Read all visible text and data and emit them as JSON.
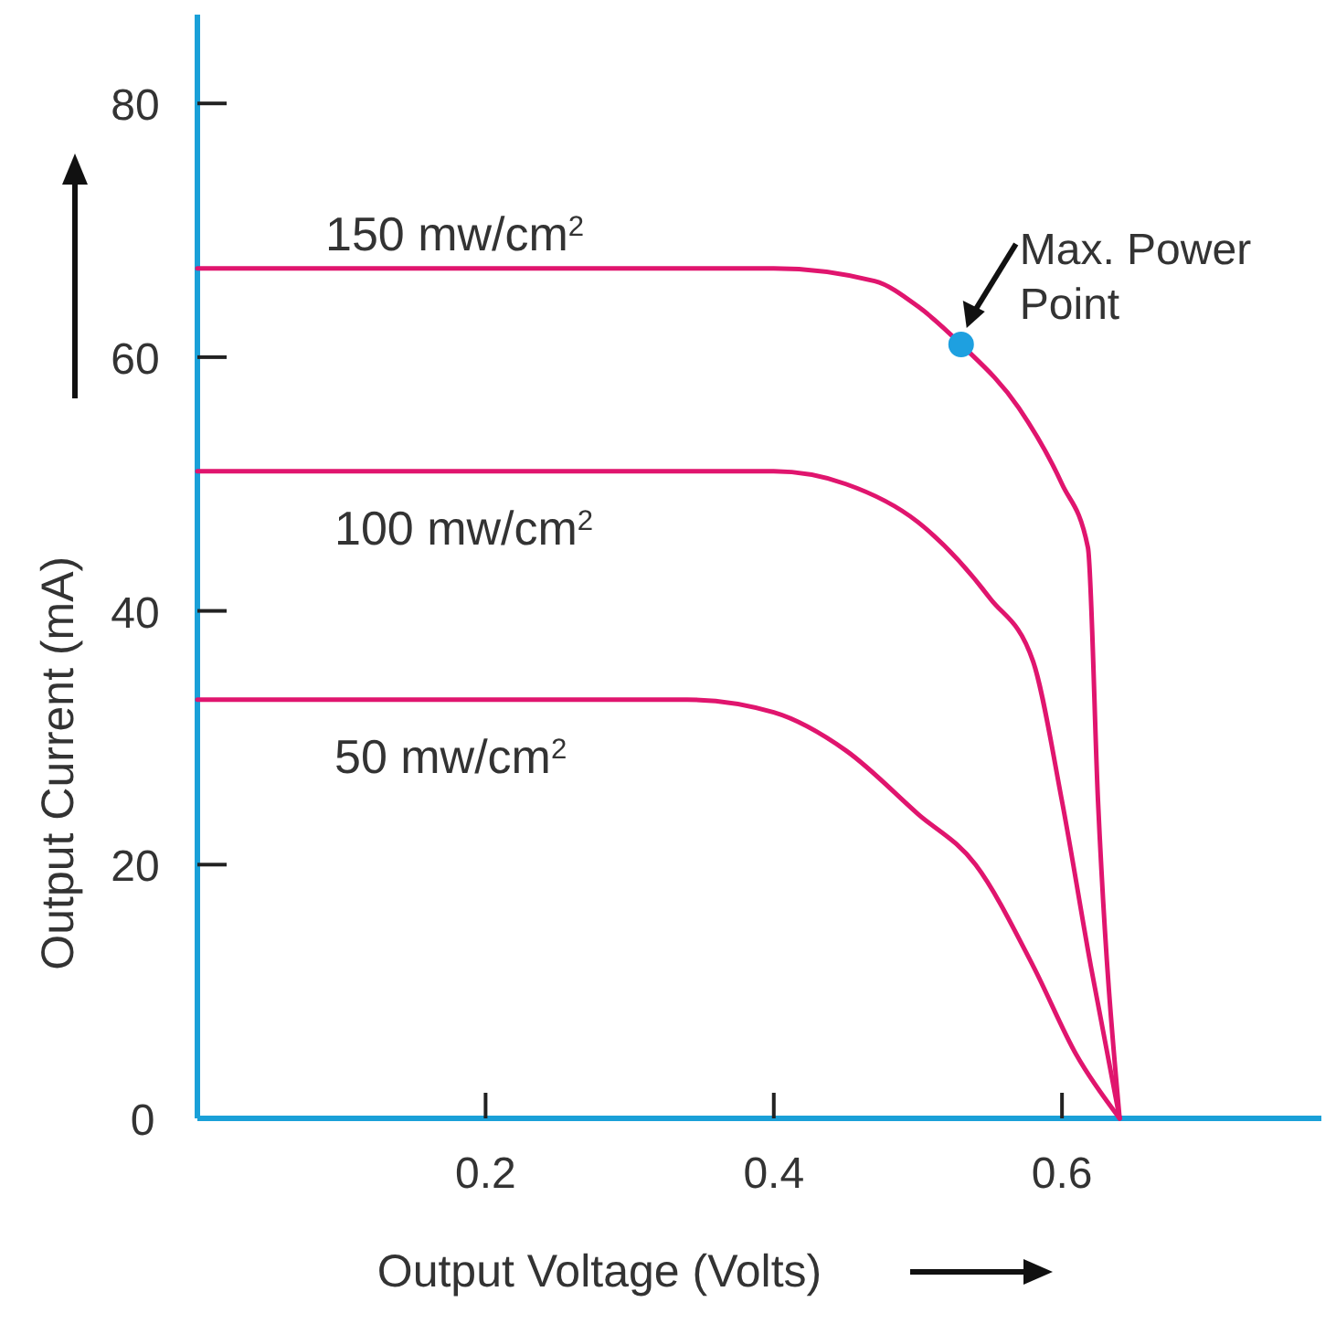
{
  "chart_data": {
    "type": "line",
    "xlabel": "Output Voltage (Volts)",
    "ylabel": "Output Current (mA)",
    "xlim": [
      0,
      0.78
    ],
    "ylim": [
      0,
      87
    ],
    "xticks": [
      0.2,
      0.4,
      0.6
    ],
    "yticks": [
      0,
      20,
      40,
      60,
      80
    ],
    "grid": false,
    "marker": "none",
    "line_style": "solid",
    "series": [
      {
        "name": "150 mw/cm$^{2}$",
        "color": "#e0156e",
        "x": [
          0,
          0.4,
          0.47,
          0.5,
          0.53,
          0.57,
          0.6,
          0.618,
          0.625,
          0.64
        ],
        "values": [
          67,
          67,
          66,
          64,
          61,
          56,
          50,
          45,
          25,
          0
        ]
      },
      {
        "name": "100 mw/cm$^{2}$",
        "color": "#e0156e",
        "x": [
          0,
          0.4,
          0.45,
          0.5,
          0.55,
          0.58,
          0.6,
          0.62,
          0.64
        ],
        "values": [
          51,
          51,
          50,
          47,
          41,
          36,
          25,
          12,
          0
        ]
      },
      {
        "name": "50 mw/cm$^{2}$",
        "color": "#e0156e",
        "x": [
          0,
          0.34,
          0.4,
          0.45,
          0.5,
          0.54,
          0.58,
          0.61,
          0.64
        ],
        "values": [
          33,
          33,
          32,
          29,
          24,
          20,
          12,
          5,
          0
        ]
      },
      {
        "type": "scatter",
        "marker": "circle",
        "color": "#1ea0e0",
        "x": [
          0.53
        ],
        "values": [
          61
        ]
      }
    ],
    "annotations": [
      {
        "text": "Max. Power Point",
        "x": 0.53,
        "y": 61
      }
    ]
  }
}
